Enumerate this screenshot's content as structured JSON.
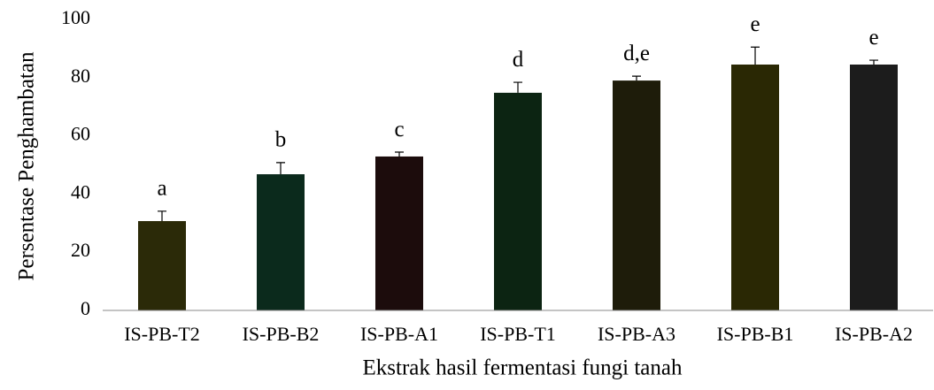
{
  "chart_data": {
    "type": "bar",
    "x_label": "Ekstrak hasil fermentasi fungi tanah",
    "y_label": "Persentase Penghambatan",
    "categories": [
      "IS-PB-T2",
      "IS-PB-B2",
      "IS-PB-A1",
      "IS-PB-T1",
      "IS-PB-A3",
      "IS-PB-B1",
      "IS-PB-A2"
    ],
    "values": [
      30.7,
      46.8,
      52.9,
      74.8,
      79.0,
      84.5,
      84.5
    ],
    "errors": [
      3.4,
      4.0,
      1.5,
      3.6,
      1.5,
      6.0,
      1.5
    ],
    "annotations": [
      "a",
      "b",
      "c",
      "d",
      "d,e",
      "e",
      "e"
    ],
    "colors": [
      "#2b2a08",
      "#0b2a1c",
      "#1c0c0c",
      "#0c2412",
      "#1e1c0a",
      "#2a2804",
      "#1c1c1c"
    ],
    "ylim": [
      0,
      100
    ],
    "yticks": [
      0,
      20,
      40,
      60,
      80,
      100
    ],
    "grid": false
  }
}
